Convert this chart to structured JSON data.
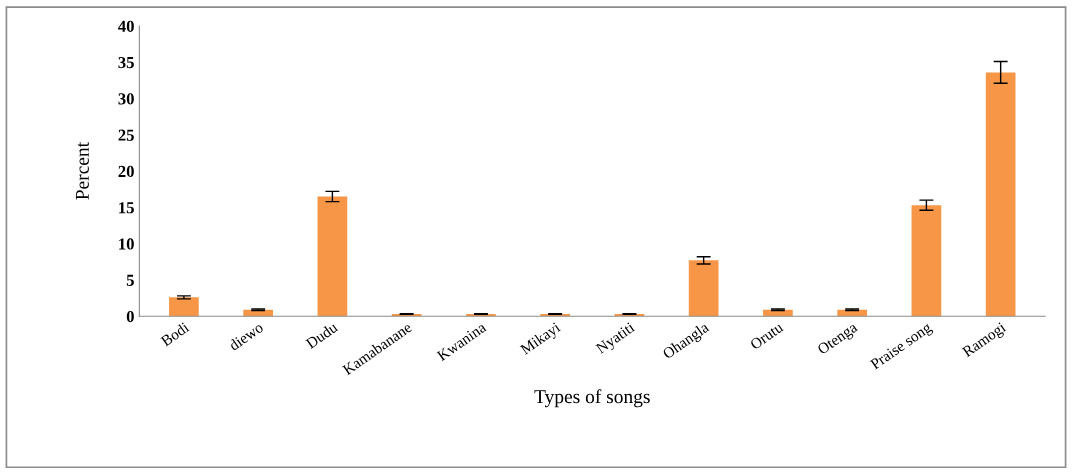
{
  "chart_data": {
    "type": "bar",
    "xlabel": "Types of songs",
    "ylabel": "Percent",
    "categories": [
      "Bodi",
      "diewo",
      "Dudu",
      "Kamabanane",
      "Kwanina",
      "Mikayi",
      "Nyatiti",
      "Ohangla",
      "Orutu",
      "Otenga",
      "Praise song",
      "Ramogi"
    ],
    "values": [
      2.6,
      0.9,
      16.5,
      0.3,
      0.3,
      0.3,
      0.3,
      7.7,
      0.9,
      0.9,
      15.3,
      33.6
    ],
    "errors": [
      0.2,
      0.1,
      0.7,
      0.05,
      0.05,
      0.05,
      0.05,
      0.5,
      0.1,
      0.1,
      0.7,
      1.5
    ],
    "color": "#f79646",
    "ylim": [
      0,
      40
    ],
    "yticks": [
      0,
      5,
      10,
      15,
      20,
      25,
      30,
      35,
      40
    ],
    "grid": false
  }
}
